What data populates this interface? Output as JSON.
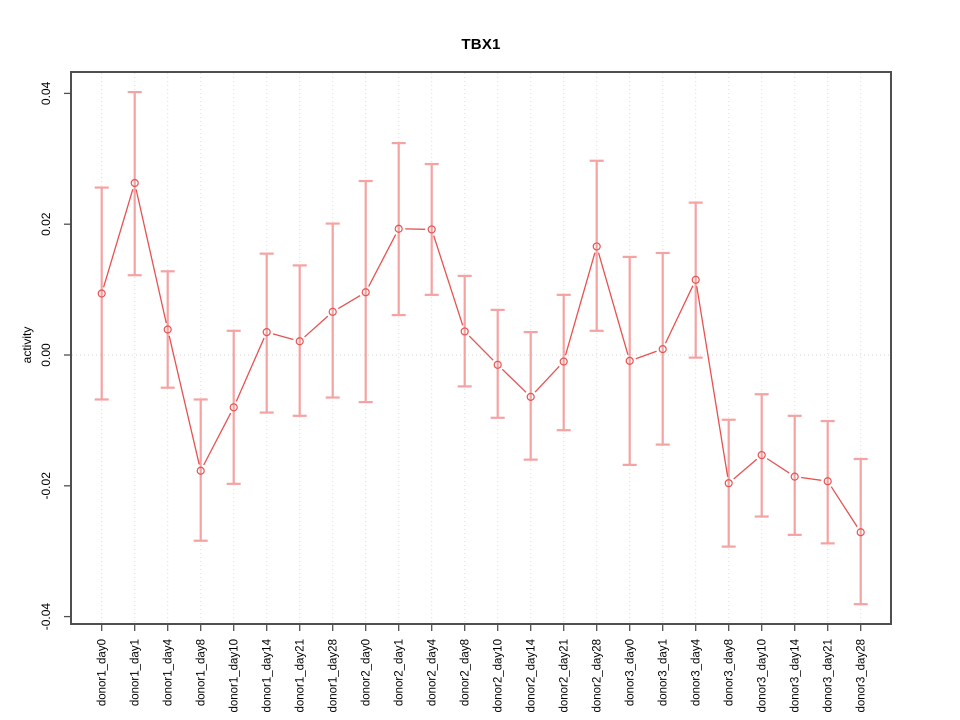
{
  "title": "TBX1",
  "chart_data": {
    "type": "line",
    "title": "TBX1",
    "xlabel": "",
    "ylabel": "activity",
    "legend": "none",
    "grid": "vertical dotted gridlines at each category; dotted horizontal line at y=0",
    "ylim": [
      -0.0411,
      0.0432
    ],
    "y_ticks": [
      -0.04,
      -0.02,
      0,
      0.02,
      0.04
    ],
    "y_tick_labels": [
      "-0.04",
      "-0.02",
      "0.00",
      "0.02",
      "0.04"
    ],
    "categories": [
      "donor1_day0",
      "donor1_day1",
      "donor1_day4",
      "donor1_day8",
      "donor1_day10",
      "donor1_day14",
      "donor1_day21",
      "donor1_day28",
      "donor2_day0",
      "donor2_day1",
      "donor2_day4",
      "donor2_day8",
      "donor2_day10",
      "donor2_day14",
      "donor2_day21",
      "donor2_day28",
      "donor3_day0",
      "donor3_day1",
      "donor3_day4",
      "donor3_day8",
      "donor3_day10",
      "donor3_day14",
      "donor3_day21",
      "donor3_day28"
    ],
    "series": [
      {
        "name": "activity",
        "marker": "open-circle",
        "values": [
          0.0094,
          0.0263,
          0.0039,
          -0.0177,
          -0.008,
          0.0035,
          0.0021,
          0.0066,
          0.0096,
          0.0193,
          0.0192,
          0.0036,
          -0.0015,
          -0.0064,
          -0.001,
          0.0166,
          -0.0009,
          0.0009,
          0.0115,
          -0.0196,
          -0.0153,
          -0.0186,
          -0.0193,
          -0.0271
        ],
        "ci_low": [
          -0.0068,
          0.0122,
          -0.005,
          -0.0284,
          -0.0197,
          -0.0088,
          -0.0093,
          -0.0065,
          -0.0072,
          0.0061,
          0.0092,
          -0.0048,
          -0.0096,
          -0.016,
          -0.0115,
          0.0037,
          -0.0168,
          -0.0137,
          -0.0004,
          -0.0293,
          -0.0247,
          -0.0275,
          -0.0288,
          -0.0381
        ],
        "ci_high": [
          0.0256,
          0.0402,
          0.0128,
          -0.0068,
          0.0037,
          0.0155,
          0.0137,
          0.0201,
          0.0266,
          0.0324,
          0.0292,
          0.0121,
          0.0069,
          0.0035,
          0.0092,
          0.0297,
          0.015,
          0.0156,
          0.0233,
          -0.0099,
          -0.006,
          -0.0093,
          -0.0101,
          -0.0159
        ]
      }
    ],
    "colors": {
      "line": "#e65252",
      "error_bar": "#f5a2a2",
      "frame": "#4f4f4f",
      "tick": "#4f4f4f",
      "gridline": "#dcdcdc",
      "zero_line": "#d4d4d4",
      "text": "#000000",
      "background": "#ffffff"
    }
  }
}
